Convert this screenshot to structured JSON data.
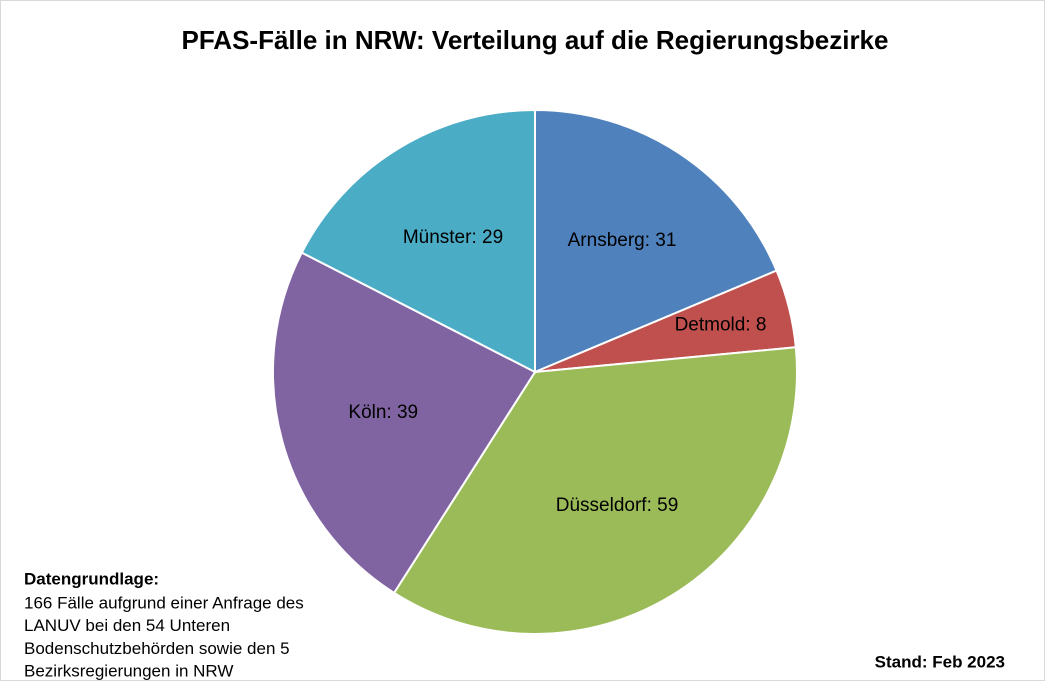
{
  "chart_data": {
    "type": "pie",
    "title": "PFAS-Fälle in NRW: Verteilung auf die Regierungsbezirke",
    "values": [
      31,
      8,
      59,
      39,
      29
    ],
    "value_labels": [
      "Arnsberg: 31",
      "Detmold: 8",
      "Düsseldorf: 59",
      "Köln: 39",
      "Münster: 29"
    ],
    "colors": [
      "#4f81bd",
      "#c0504d",
      "#9bbb59",
      "#8064a2",
      "#4bacc6"
    ]
  },
  "note": {
    "heading": "Datengrundlage:",
    "lines": [
      "166 Fälle aufgrund einer Anfrage des",
      "LANUV bei den 54 Unteren",
      "Bodenschutzbehörden sowie den 5",
      "Bezirksregierungen in NRW"
    ]
  },
  "stand": "Stand: Feb 2023"
}
